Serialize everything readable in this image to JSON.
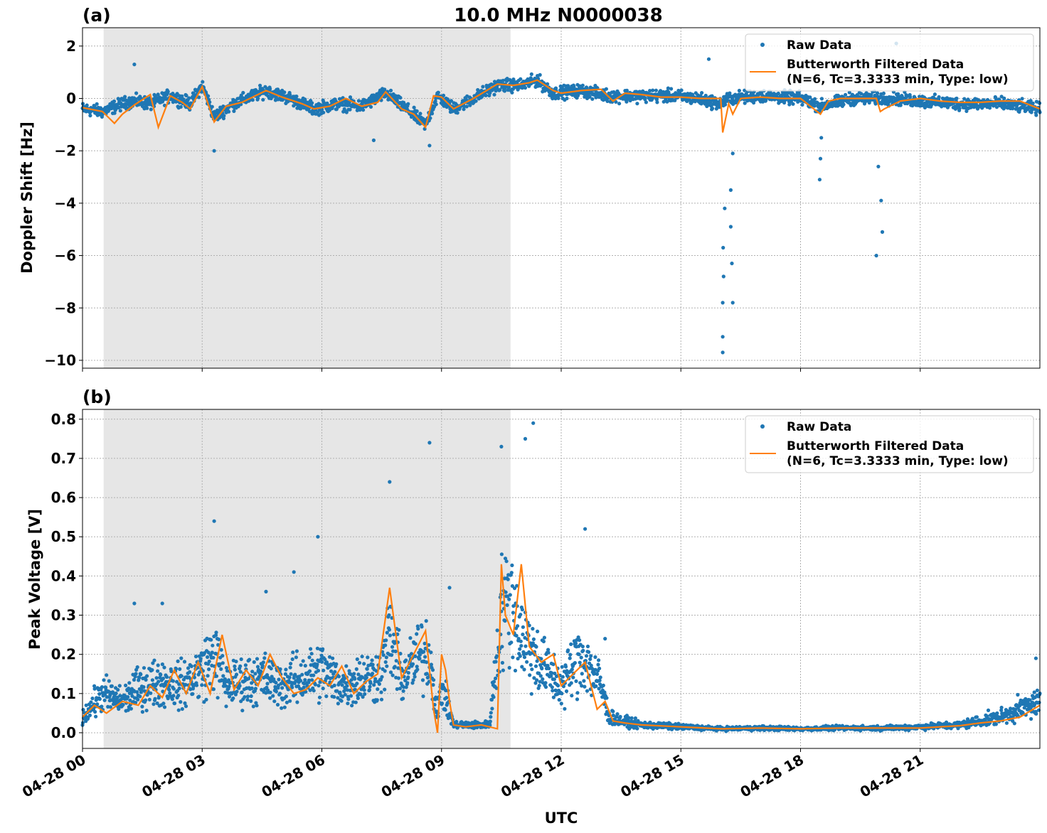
{
  "colors": {
    "raw": "#1f77b4",
    "filtered": "#ff7f0e",
    "shade": "#e6e6e6"
  },
  "xaxis": {
    "label": "UTC",
    "ticks": [
      {
        "value": 0,
        "label": "04-28 00"
      },
      {
        "value": 3,
        "label": "04-28 03"
      },
      {
        "value": 6,
        "label": "04-28 06"
      },
      {
        "value": 9,
        "label": "04-28 09"
      },
      {
        "value": 12,
        "label": "04-28 12"
      },
      {
        "value": 15,
        "label": "04-28 15"
      },
      {
        "value": 18,
        "label": "04-28 18"
      },
      {
        "value": 21,
        "label": "04-28 21"
      }
    ]
  },
  "chart_data": [
    {
      "type": "scatter",
      "panel_label": "(a)",
      "title": "10.0 MHz N0000038",
      "ylabel": "Doppler Shift [Hz]",
      "xlim": [
        0,
        24
      ],
      "ylim": [
        -10.3,
        2.7
      ],
      "yticks": [
        {
          "value": 2,
          "label": "2"
        },
        {
          "value": 0,
          "label": "0"
        },
        {
          "value": -2,
          "label": "−2"
        },
        {
          "value": -4,
          "label": "−4"
        },
        {
          "value": -6,
          "label": "−6"
        },
        {
          "value": -8,
          "label": "−8"
        },
        {
          "value": -10,
          "label": "−10"
        }
      ],
      "shaded_region": [
        0.53,
        10.73
      ],
      "grid": true,
      "legend": "top-right",
      "series": [
        {
          "name": "Raw Data",
          "kind": "points",
          "x": [
            0,
            0.5,
            1.0,
            1.3,
            1.7,
            2.2,
            2.7,
            3.0,
            3.3,
            3.8,
            4.6,
            5.2,
            5.8,
            6.4,
            7.0,
            7.6,
            8.2,
            8.6,
            8.9,
            9.3,
            9.8,
            10.4,
            11.0,
            11.4,
            11.8,
            12.5,
            13.2,
            14.0,
            14.8,
            15.4,
            16.0,
            16.2,
            17.0,
            18.0,
            18.5,
            19.3,
            20.2,
            21.0,
            22.0,
            23.0,
            24.0
          ],
          "y": [
            -0.4,
            -0.5,
            -0.2,
            -0.1,
            -0.2,
            0.1,
            -0.2,
            0.5,
            -0.7,
            -0.2,
            0.3,
            0.0,
            -0.4,
            -0.2,
            -0.3,
            0.2,
            -0.5,
            -1.0,
            0.1,
            -0.4,
            0.0,
            0.5,
            0.5,
            0.7,
            0.2,
            0.3,
            0.1,
            0.1,
            0.1,
            0.0,
            -0.2,
            0.0,
            0.1,
            0.0,
            -0.3,
            0.0,
            0.0,
            -0.1,
            -0.2,
            -0.2,
            -0.4
          ],
          "outliers": [
            {
              "x": 16.05,
              "y": -9.7
            },
            {
              "x": 16.05,
              "y": -9.1
            },
            {
              "x": 16.05,
              "y": -7.8
            },
            {
              "x": 16.07,
              "y": -6.8
            },
            {
              "x": 16.06,
              "y": -5.7
            },
            {
              "x": 16.1,
              "y": -4.2
            },
            {
              "x": 16.3,
              "y": -7.8
            },
            {
              "x": 16.28,
              "y": -6.3
            },
            {
              "x": 16.25,
              "y": -4.9
            },
            {
              "x": 16.25,
              "y": -3.5
            },
            {
              "x": 16.3,
              "y": -2.1
            },
            {
              "x": 18.48,
              "y": -3.1
            },
            {
              "x": 18.5,
              "y": -2.3
            },
            {
              "x": 18.52,
              "y": -1.5
            },
            {
              "x": 19.9,
              "y": -6.0
            },
            {
              "x": 20.05,
              "y": -5.1
            },
            {
              "x": 20.02,
              "y": -3.9
            },
            {
              "x": 19.95,
              "y": -2.6
            },
            {
              "x": 15.7,
              "y": 1.5
            },
            {
              "x": 20.4,
              "y": 2.1
            },
            {
              "x": 1.3,
              "y": 1.3
            },
            {
              "x": 3.3,
              "y": -2.0
            },
            {
              "x": 7.3,
              "y": -1.6
            },
            {
              "x": 8.7,
              "y": -1.8
            }
          ]
        },
        {
          "name": "Butterworth Filtered Data\n(N=6, Tc=3.3333 min, Type: low)",
          "kind": "line",
          "x": [
            0,
            0.5,
            0.8,
            1.0,
            1.3,
            1.7,
            1.9,
            2.2,
            2.5,
            2.7,
            3.0,
            3.3,
            3.6,
            4.0,
            4.6,
            5.0,
            5.5,
            5.8,
            6.2,
            6.6,
            7.0,
            7.4,
            7.6,
            8.0,
            8.3,
            8.6,
            8.8,
            9.0,
            9.3,
            9.8,
            10.4,
            10.8,
            11.2,
            11.4,
            11.8,
            12.0,
            12.5,
            13.0,
            13.3,
            13.6,
            14.0,
            14.5,
            15.0,
            15.5,
            16.0,
            16.05,
            16.2,
            16.3,
            16.5,
            17.0,
            17.5,
            18.0,
            18.5,
            18.7,
            19.0,
            19.5,
            19.9,
            20.0,
            20.1,
            20.5,
            21.0,
            21.5,
            22.0,
            22.5,
            23.0,
            23.5,
            24.0
          ],
          "y": [
            -0.35,
            -0.5,
            -0.95,
            -0.6,
            -0.25,
            0.15,
            -1.1,
            0.1,
            -0.15,
            -0.4,
            0.45,
            -0.9,
            -0.3,
            -0.15,
            0.3,
            0.05,
            -0.2,
            -0.4,
            -0.3,
            0.0,
            -0.3,
            -0.15,
            0.25,
            -0.4,
            -0.6,
            -1.1,
            0.1,
            0.05,
            -0.4,
            0.0,
            0.55,
            0.5,
            0.6,
            0.7,
            0.3,
            0.2,
            0.3,
            0.35,
            -0.1,
            0.2,
            0.15,
            0.05,
            0.05,
            0.0,
            0.0,
            -1.3,
            -0.2,
            -0.6,
            0.0,
            0.05,
            0.0,
            0.0,
            -0.6,
            -0.1,
            0.0,
            0.0,
            0.0,
            -0.5,
            -0.4,
            -0.1,
            0.0,
            -0.1,
            -0.15,
            -0.15,
            -0.1,
            -0.1,
            -0.4
          ]
        }
      ]
    },
    {
      "type": "scatter",
      "panel_label": "(b)",
      "title": "",
      "ylabel": "Peak Voltage [V]",
      "xlim": [
        0,
        24
      ],
      "ylim": [
        -0.04,
        0.825
      ],
      "yticks": [
        {
          "value": 0.8,
          "label": "0.8"
        },
        {
          "value": 0.7,
          "label": "0.7"
        },
        {
          "value": 0.6,
          "label": "0.6"
        },
        {
          "value": 0.5,
          "label": "0.5"
        },
        {
          "value": 0.4,
          "label": "0.4"
        },
        {
          "value": 0.3,
          "label": "0.3"
        },
        {
          "value": 0.2,
          "label": "0.2"
        },
        {
          "value": 0.1,
          "label": "0.1"
        },
        {
          "value": 0.0,
          "label": "0.0"
        }
      ],
      "shaded_region": [
        0.53,
        10.73
      ],
      "grid": true,
      "legend": "top-right",
      "series": [
        {
          "name": "Raw Data",
          "kind": "points",
          "x": [
            0,
            0.5,
            1.0,
            1.5,
            2.0,
            2.5,
            3.0,
            3.3,
            3.6,
            4.0,
            4.5,
            5.0,
            5.5,
            6.0,
            6.5,
            7.0,
            7.5,
            7.7,
            8.0,
            8.5,
            8.7,
            8.9,
            9.0,
            9.3,
            9.8,
            10.2,
            10.5,
            10.7,
            11.0,
            11.3,
            11.7,
            12.0,
            12.5,
            13.0,
            13.2,
            13.5,
            14.0,
            15.0,
            16.0,
            17.0,
            18.0,
            19.0,
            20.0,
            21.0,
            22.0,
            22.5,
            23.0,
            23.5,
            24.0
          ],
          "y": [
            0.04,
            0.1,
            0.08,
            0.12,
            0.13,
            0.12,
            0.16,
            0.2,
            0.12,
            0.13,
            0.14,
            0.12,
            0.14,
            0.16,
            0.12,
            0.14,
            0.15,
            0.25,
            0.14,
            0.2,
            0.2,
            0.04,
            0.12,
            0.02,
            0.02,
            0.02,
            0.3,
            0.35,
            0.25,
            0.2,
            0.15,
            0.12,
            0.2,
            0.12,
            0.04,
            0.03,
            0.02,
            0.015,
            0.01,
            0.012,
            0.01,
            0.012,
            0.012,
            0.015,
            0.02,
            0.03,
            0.04,
            0.06,
            0.08
          ],
          "outliers": [
            {
              "x": 3.3,
              "y": 0.54
            },
            {
              "x": 5.9,
              "y": 0.5
            },
            {
              "x": 7.7,
              "y": 0.64
            },
            {
              "x": 8.7,
              "y": 0.74
            },
            {
              "x": 10.5,
              "y": 0.73
            },
            {
              "x": 11.1,
              "y": 0.75
            },
            {
              "x": 11.3,
              "y": 0.79
            },
            {
              "x": 12.6,
              "y": 0.52
            },
            {
              "x": 4.6,
              "y": 0.36
            },
            {
              "x": 5.3,
              "y": 0.41
            },
            {
              "x": 1.3,
              "y": 0.33
            },
            {
              "x": 2.0,
              "y": 0.33
            },
            {
              "x": 9.2,
              "y": 0.37
            },
            {
              "x": 13.1,
              "y": 0.24
            },
            {
              "x": 23.9,
              "y": 0.19
            }
          ]
        },
        {
          "name": "Butterworth Filtered Data\n(N=6, Tc=3.3333 min, Type: low)",
          "kind": "line",
          "x": [
            0,
            0.3,
            0.6,
            1.0,
            1.4,
            1.7,
            2.0,
            2.3,
            2.6,
            2.9,
            3.2,
            3.5,
            3.8,
            4.1,
            4.4,
            4.7,
            5.0,
            5.3,
            5.6,
            5.9,
            6.2,
            6.5,
            6.8,
            7.1,
            7.4,
            7.7,
            8.0,
            8.3,
            8.6,
            8.8,
            8.9,
            9.0,
            9.1,
            9.2,
            9.3,
            9.6,
            10.0,
            10.4,
            10.5,
            10.6,
            10.8,
            11.0,
            11.2,
            11.5,
            11.8,
            12.0,
            12.3,
            12.6,
            12.9,
            13.1,
            13.3,
            13.6,
            14.0,
            15.0,
            16.0,
            17.0,
            18.0,
            19.0,
            20.0,
            21.0,
            22.0,
            22.5,
            23.0,
            23.5,
            24.0
          ],
          "y": [
            0.04,
            0.07,
            0.05,
            0.08,
            0.07,
            0.12,
            0.09,
            0.16,
            0.1,
            0.18,
            0.1,
            0.25,
            0.11,
            0.16,
            0.12,
            0.2,
            0.14,
            0.1,
            0.11,
            0.14,
            0.12,
            0.17,
            0.1,
            0.13,
            0.15,
            0.37,
            0.14,
            0.2,
            0.26,
            0.06,
            0.0,
            0.2,
            0.16,
            0.08,
            0.02,
            0.015,
            0.02,
            0.01,
            0.43,
            0.3,
            0.25,
            0.43,
            0.22,
            0.18,
            0.2,
            0.12,
            0.15,
            0.18,
            0.06,
            0.08,
            0.03,
            0.025,
            0.02,
            0.015,
            0.01,
            0.012,
            0.01,
            0.012,
            0.012,
            0.012,
            0.018,
            0.025,
            0.03,
            0.04,
            0.07
          ]
        }
      ]
    }
  ]
}
